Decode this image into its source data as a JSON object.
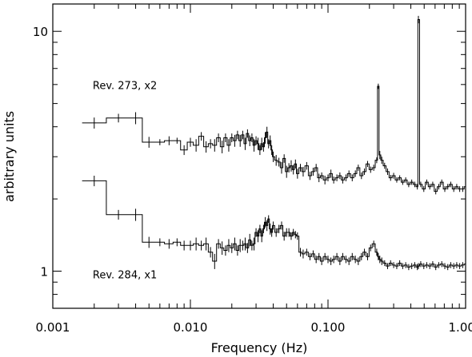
{
  "chart_data": {
    "type": "line",
    "style": "step histogram with vertical error bars",
    "xlabel": "Frequency (Hz)",
    "ylabel": "arbitrary units",
    "xscale": "log",
    "yscale": "log",
    "xlim": [
      0.001,
      1.0
    ],
    "ylim": [
      0.7,
      13.0
    ],
    "x_ticks": [
      {
        "value": 0.001,
        "label": "0.001"
      },
      {
        "value": 0.01,
        "label": "0.010"
      },
      {
        "value": 0.1,
        "label": "0.100"
      },
      {
        "value": 1.0,
        "label": "1.000"
      }
    ],
    "y_ticks": [
      {
        "value": 1,
        "label": "1"
      },
      {
        "value": 10,
        "label": "10"
      }
    ],
    "grid": false,
    "annotations": [
      {
        "text": "Rev. 273, x2",
        "x": 0.00195,
        "y": 5.75
      },
      {
        "text": "Rev. 284, x1",
        "x": 0.00195,
        "y": 0.935
      }
    ],
    "series": [
      {
        "x": [
          0.002,
          0.003,
          0.004,
          0.005,
          0.006,
          0.007,
          0.008,
          0.009,
          0.01,
          0.011,
          0.012,
          0.013,
          0.014,
          0.015,
          0.016,
          0.017,
          0.018,
          0.019,
          0.02,
          0.021,
          0.022,
          0.023,
          0.024,
          0.025,
          0.026,
          0.027,
          0.028,
          0.029,
          0.03,
          0.031,
          0.032,
          0.033,
          0.034,
          0.035,
          0.036,
          0.037,
          0.038,
          0.039,
          0.04,
          0.042,
          0.044,
          0.046,
          0.048,
          0.05,
          0.052,
          0.054,
          0.056,
          0.058,
          0.06,
          0.063,
          0.066,
          0.07,
          0.074,
          0.078,
          0.082,
          0.086,
          0.09,
          0.095,
          0.1,
          0.105,
          0.11,
          0.116,
          0.122,
          0.128,
          0.135,
          0.142,
          0.15,
          0.158,
          0.166,
          0.175,
          0.184,
          0.194,
          0.204,
          0.215,
          0.226,
          0.232,
          0.238,
          0.246,
          0.258,
          0.271,
          0.285,
          0.3,
          0.316,
          0.332,
          0.349,
          0.367,
          0.386,
          0.406,
          0.427,
          0.446,
          0.454,
          0.472,
          0.497,
          0.522,
          0.549,
          0.577,
          0.607,
          0.638,
          0.671,
          0.706,
          0.742,
          0.78,
          0.82,
          0.862,
          0.906,
          0.953,
          1.0
        ],
        "values": [
          4.15,
          4.35,
          4.35,
          3.45,
          3.45,
          3.5,
          3.5,
          3.2,
          3.45,
          3.35,
          3.65,
          3.3,
          3.4,
          3.35,
          3.6,
          3.3,
          3.6,
          3.35,
          3.6,
          3.5,
          3.7,
          3.5,
          3.7,
          3.4,
          3.75,
          3.5,
          3.6,
          3.35,
          3.5,
          3.4,
          3.2,
          3.4,
          3.3,
          3.6,
          3.8,
          3.4,
          3.5,
          3.2,
          3.0,
          2.9,
          2.85,
          2.7,
          2.95,
          2.6,
          2.7,
          2.75,
          2.65,
          2.8,
          2.55,
          2.7,
          2.6,
          2.75,
          2.5,
          2.6,
          2.7,
          2.45,
          2.5,
          2.4,
          2.45,
          2.55,
          2.4,
          2.45,
          2.5,
          2.4,
          2.45,
          2.55,
          2.45,
          2.55,
          2.7,
          2.5,
          2.6,
          2.8,
          2.65,
          2.7,
          2.9,
          5.9,
          3.05,
          2.9,
          2.75,
          2.6,
          2.45,
          2.5,
          2.4,
          2.45,
          2.35,
          2.4,
          2.3,
          2.35,
          2.3,
          2.25,
          11.2,
          2.3,
          2.2,
          2.35,
          2.25,
          2.3,
          2.15,
          2.25,
          2.35,
          2.2,
          2.25,
          2.3,
          2.2,
          2.25,
          2.2,
          2.2,
          2.25
        ],
        "errors": [
          0.22,
          0.18,
          0.25,
          0.18,
          0.1,
          0.15,
          0.1,
          0.15,
          0.15,
          0.2,
          0.15,
          0.18,
          0.15,
          0.2,
          0.15,
          0.2,
          0.15,
          0.2,
          0.15,
          0.2,
          0.15,
          0.2,
          0.15,
          0.2,
          0.15,
          0.18,
          0.15,
          0.2,
          0.15,
          0.2,
          0.15,
          0.2,
          0.15,
          0.2,
          0.2,
          0.15,
          0.18,
          0.15,
          0.15,
          0.15,
          0.12,
          0.15,
          0.12,
          0.15,
          0.12,
          0.15,
          0.12,
          0.12,
          0.12,
          0.1,
          0.12,
          0.1,
          0.1,
          0.1,
          0.1,
          0.1,
          0.08,
          0.1,
          0.08,
          0.1,
          0.08,
          0.08,
          0.08,
          0.08,
          0.08,
          0.08,
          0.08,
          0.08,
          0.08,
          0.08,
          0.08,
          0.08,
          0.08,
          0.08,
          0.08,
          0.15,
          0.12,
          0.1,
          0.08,
          0.08,
          0.07,
          0.07,
          0.06,
          0.06,
          0.06,
          0.06,
          0.06,
          0.06,
          0.06,
          0.06,
          0.4,
          0.06,
          0.06,
          0.06,
          0.06,
          0.06,
          0.06,
          0.06,
          0.06,
          0.06,
          0.06,
          0.06,
          0.06,
          0.06,
          0.06,
          0.06,
          0.06
        ]
      },
      {
        "x": [
          0.002,
          0.003,
          0.004,
          0.005,
          0.006,
          0.007,
          0.008,
          0.009,
          0.01,
          0.011,
          0.012,
          0.013,
          0.014,
          0.015,
          0.016,
          0.017,
          0.018,
          0.019,
          0.02,
          0.021,
          0.022,
          0.023,
          0.024,
          0.025,
          0.026,
          0.027,
          0.028,
          0.029,
          0.03,
          0.031,
          0.032,
          0.033,
          0.034,
          0.035,
          0.036,
          0.037,
          0.038,
          0.039,
          0.04,
          0.042,
          0.044,
          0.046,
          0.048,
          0.05,
          0.052,
          0.054,
          0.056,
          0.058,
          0.06,
          0.063,
          0.066,
          0.07,
          0.074,
          0.078,
          0.082,
          0.086,
          0.09,
          0.095,
          0.1,
          0.105,
          0.11,
          0.116,
          0.122,
          0.128,
          0.135,
          0.142,
          0.15,
          0.158,
          0.166,
          0.175,
          0.184,
          0.194,
          0.204,
          0.215,
          0.226,
          0.232,
          0.238,
          0.246,
          0.258,
          0.271,
          0.285,
          0.3,
          0.316,
          0.332,
          0.349,
          0.367,
          0.386,
          0.406,
          0.427,
          0.446,
          0.454,
          0.472,
          0.497,
          0.522,
          0.549,
          0.577,
          0.607,
          0.638,
          0.671,
          0.706,
          0.742,
          0.78,
          0.82,
          0.862,
          0.906,
          0.953,
          1.0
        ],
        "values": [
          2.38,
          1.72,
          1.72,
          1.32,
          1.32,
          1.3,
          1.32,
          1.28,
          1.28,
          1.3,
          1.28,
          1.3,
          1.2,
          1.1,
          1.3,
          1.25,
          1.22,
          1.28,
          1.25,
          1.3,
          1.22,
          1.28,
          1.28,
          1.3,
          1.25,
          1.35,
          1.28,
          1.3,
          1.45,
          1.4,
          1.5,
          1.4,
          1.5,
          1.6,
          1.55,
          1.65,
          1.5,
          1.45,
          1.55,
          1.45,
          1.5,
          1.55,
          1.4,
          1.45,
          1.45,
          1.4,
          1.45,
          1.42,
          1.4,
          1.2,
          1.18,
          1.2,
          1.15,
          1.18,
          1.12,
          1.15,
          1.1,
          1.15,
          1.12,
          1.1,
          1.12,
          1.15,
          1.1,
          1.15,
          1.12,
          1.1,
          1.15,
          1.12,
          1.1,
          1.15,
          1.2,
          1.15,
          1.25,
          1.3,
          1.2,
          1.15,
          1.12,
          1.1,
          1.08,
          1.05,
          1.08,
          1.06,
          1.05,
          1.08,
          1.05,
          1.06,
          1.04,
          1.05,
          1.06,
          1.04,
          1.05,
          1.07,
          1.05,
          1.06,
          1.05,
          1.07,
          1.04,
          1.06,
          1.07,
          1.05,
          1.04,
          1.06,
          1.05,
          1.06,
          1.05,
          1.06,
          1.07
        ],
        "errors": [
          0.12,
          0.08,
          0.1,
          0.07,
          0.05,
          0.06,
          0.05,
          0.06,
          0.06,
          0.08,
          0.06,
          0.08,
          0.06,
          0.08,
          0.06,
          0.08,
          0.06,
          0.08,
          0.06,
          0.08,
          0.06,
          0.08,
          0.06,
          0.08,
          0.06,
          0.08,
          0.06,
          0.08,
          0.06,
          0.08,
          0.06,
          0.08,
          0.06,
          0.08,
          0.08,
          0.06,
          0.08,
          0.06,
          0.06,
          0.06,
          0.06,
          0.06,
          0.06,
          0.06,
          0.06,
          0.05,
          0.05,
          0.05,
          0.05,
          0.05,
          0.05,
          0.04,
          0.04,
          0.04,
          0.04,
          0.04,
          0.04,
          0.04,
          0.04,
          0.04,
          0.04,
          0.04,
          0.04,
          0.04,
          0.04,
          0.04,
          0.04,
          0.04,
          0.04,
          0.04,
          0.04,
          0.04,
          0.04,
          0.04,
          0.04,
          0.04,
          0.04,
          0.04,
          0.03,
          0.03,
          0.03,
          0.03,
          0.03,
          0.03,
          0.03,
          0.03,
          0.03,
          0.03,
          0.03,
          0.03,
          0.03,
          0.03,
          0.03,
          0.03,
          0.03,
          0.03,
          0.03,
          0.03,
          0.03,
          0.03,
          0.03,
          0.03,
          0.03,
          0.03,
          0.03,
          0.03,
          0.03
        ]
      }
    ]
  }
}
